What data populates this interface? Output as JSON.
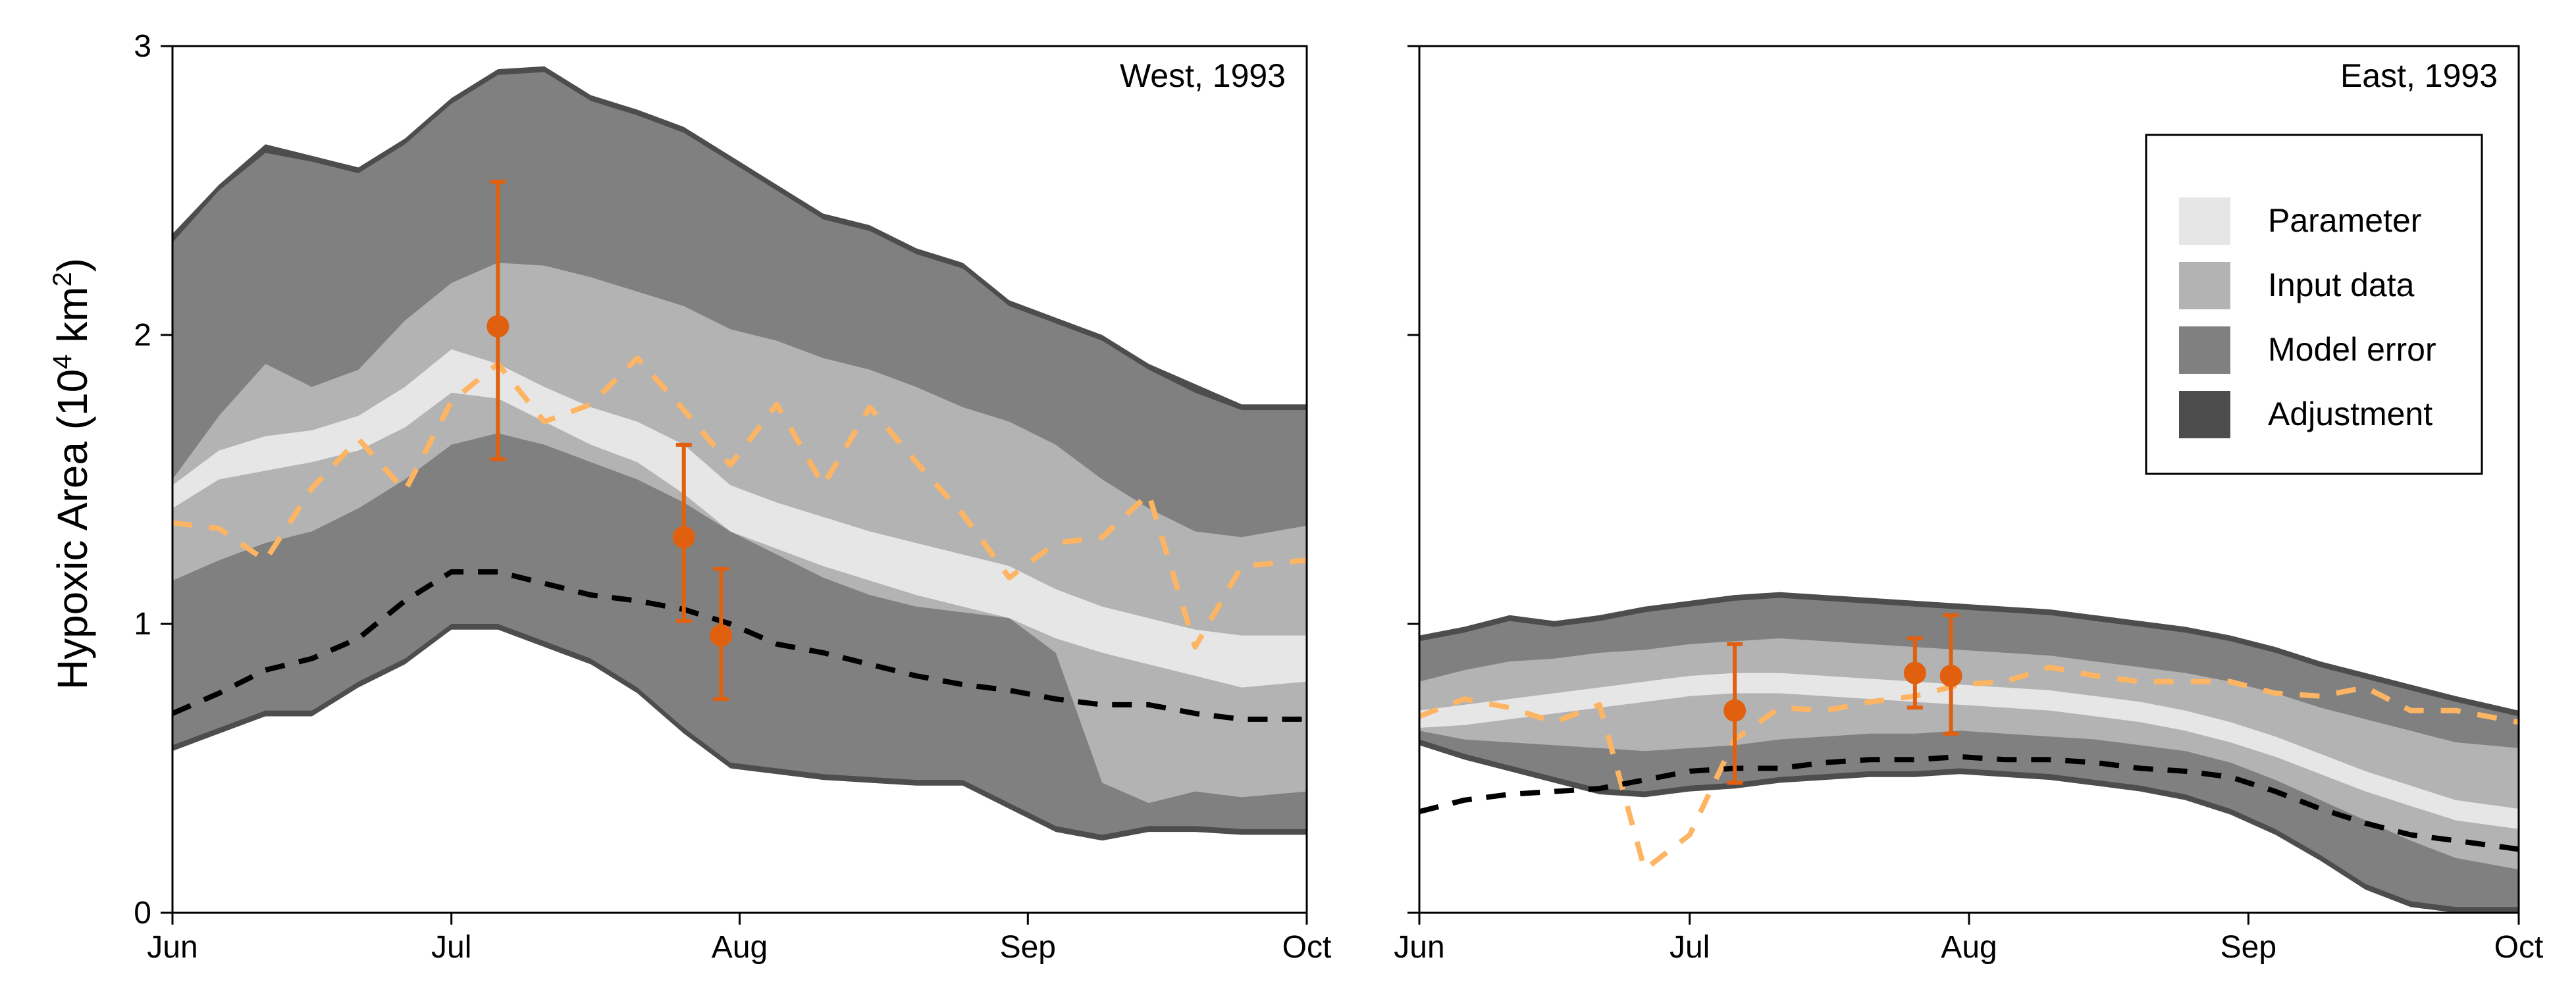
{
  "chart_data": {
    "type": "area",
    "ylabel_parts": {
      "main": "Hypoxic Area (10",
      "exp1": "4",
      "mid": " km",
      "exp2": "2",
      "end": ")"
    },
    "ylim": [
      0,
      3
    ],
    "yticks": [
      "0",
      "1",
      "2",
      "3"
    ],
    "xticks": [
      "Jun",
      "Jul",
      "Aug",
      "Sep",
      "Oct"
    ],
    "xlim_days": [
      0,
      122
    ],
    "tick_days": [
      0,
      30,
      61,
      92,
      122
    ],
    "legend": {
      "placement": "top-right of East panel",
      "items": [
        {
          "label": "Parameter",
          "color": "#e6e6e6"
        },
        {
          "label": "Input data",
          "color": "#b3b3b3"
        },
        {
          "label": "Model error",
          "color": "#808080"
        },
        {
          "label": "Adjustment",
          "color": "#4d4d4d"
        }
      ]
    },
    "colors": {
      "parameter": "#e6e6e6",
      "input": "#b3b3b3",
      "model": "#808080",
      "adjustment": "#4d4d4d",
      "obs": "#e0600f",
      "orange_dash": "#fdb563",
      "black_dash": "#000000"
    },
    "panels": [
      {
        "name": "West, 1993",
        "days": [
          0,
          5,
          10,
          15,
          20,
          25,
          30,
          35,
          40,
          45,
          50,
          55,
          60,
          65,
          70,
          75,
          80,
          85,
          90,
          95,
          100,
          105,
          110,
          115,
          122
        ],
        "adj_hi": [
          2.35,
          2.52,
          2.66,
          2.62,
          2.58,
          2.68,
          2.82,
          2.92,
          2.93,
          2.83,
          2.78,
          2.72,
          2.62,
          2.52,
          2.42,
          2.38,
          2.3,
          2.25,
          2.12,
          2.06,
          2.0,
          1.9,
          1.83,
          1.76,
          1.76
        ],
        "adj_lo": [
          0.56,
          0.62,
          0.68,
          0.68,
          0.78,
          0.86,
          0.98,
          0.98,
          0.92,
          0.86,
          0.76,
          0.62,
          0.5,
          0.48,
          0.46,
          0.45,
          0.44,
          0.44,
          0.36,
          0.28,
          0.25,
          0.28,
          0.28,
          0.27,
          0.27
        ],
        "model_hi": [
          2.32,
          2.5,
          2.63,
          2.6,
          2.56,
          2.66,
          2.8,
          2.9,
          2.91,
          2.81,
          2.76,
          2.7,
          2.6,
          2.5,
          2.4,
          2.36,
          2.28,
          2.23,
          2.1,
          2.04,
          1.98,
          1.88,
          1.8,
          1.74,
          1.74
        ],
        "model_lo": [
          0.58,
          0.64,
          0.7,
          0.7,
          0.8,
          0.88,
          1.0,
          1.0,
          0.94,
          0.88,
          0.78,
          0.64,
          0.52,
          0.5,
          0.48,
          0.47,
          0.46,
          0.46,
          0.38,
          0.3,
          0.27,
          0.3,
          0.3,
          0.29,
          0.29
        ],
        "input_hi": [
          1.5,
          1.72,
          1.9,
          1.82,
          1.88,
          2.05,
          2.18,
          2.25,
          2.24,
          2.2,
          2.15,
          2.1,
          2.02,
          1.98,
          1.92,
          1.88,
          1.82,
          1.75,
          1.7,
          1.62,
          1.5,
          1.4,
          1.32,
          1.3,
          1.34
        ],
        "input_lo": [
          1.15,
          1.22,
          1.28,
          1.32,
          1.4,
          1.5,
          1.62,
          1.66,
          1.62,
          1.56,
          1.5,
          1.42,
          1.32,
          1.24,
          1.16,
          1.1,
          1.06,
          1.04,
          1.02,
          0.9,
          0.45,
          0.38,
          0.42,
          0.4,
          0.42
        ],
        "param_hi": [
          1.48,
          1.6,
          1.65,
          1.67,
          1.72,
          1.82,
          1.95,
          1.9,
          1.82,
          1.75,
          1.7,
          1.62,
          1.48,
          1.42,
          1.37,
          1.32,
          1.28,
          1.24,
          1.2,
          1.12,
          1.06,
          1.02,
          0.98,
          0.96,
          0.96
        ],
        "param_lo": [
          1.4,
          1.5,
          1.53,
          1.56,
          1.6,
          1.68,
          1.8,
          1.78,
          1.7,
          1.62,
          1.56,
          1.45,
          1.32,
          1.26,
          1.2,
          1.15,
          1.1,
          1.06,
          1.02,
          0.95,
          0.9,
          0.86,
          0.82,
          0.78,
          0.8
        ],
        "black_dash": [
          0.69,
          0.76,
          0.84,
          0.88,
          0.95,
          1.08,
          1.18,
          1.18,
          1.14,
          1.1,
          1.08,
          1.05,
          1.0,
          0.93,
          0.9,
          0.86,
          0.82,
          0.79,
          0.77,
          0.74,
          0.72,
          0.72,
          0.69,
          0.67,
          0.67
        ],
        "orange_dash": [
          1.35,
          1.33,
          1.22,
          1.47,
          1.64,
          1.46,
          1.77,
          1.9,
          1.7,
          1.76,
          1.92,
          1.74,
          1.55,
          1.76,
          1.48,
          1.75,
          1.56,
          1.38,
          1.16,
          1.28,
          1.3,
          1.45,
          0.92,
          1.2,
          1.22
        ],
        "obs": [
          {
            "day": 35,
            "value": 2.03,
            "lo": 1.57,
            "hi": 2.53
          },
          {
            "day": 55,
            "value": 1.3,
            "lo": 1.01,
            "hi": 1.62
          },
          {
            "day": 59,
            "value": 0.96,
            "lo": 0.74,
            "hi": 1.19
          }
        ]
      },
      {
        "name": "East, 1993",
        "days": [
          0,
          5,
          10,
          15,
          20,
          25,
          30,
          35,
          40,
          45,
          50,
          55,
          60,
          65,
          70,
          75,
          80,
          85,
          90,
          95,
          100,
          105,
          110,
          115,
          122
        ],
        "adj_hi": [
          0.96,
          0.99,
          1.03,
          1.01,
          1.03,
          1.06,
          1.08,
          1.1,
          1.11,
          1.1,
          1.09,
          1.08,
          1.07,
          1.06,
          1.05,
          1.03,
          1.01,
          0.99,
          0.96,
          0.92,
          0.87,
          0.83,
          0.79,
          0.75,
          0.7
        ],
        "adj_lo": [
          0.58,
          0.53,
          0.49,
          0.45,
          0.41,
          0.4,
          0.42,
          0.43,
          0.45,
          0.46,
          0.47,
          0.47,
          0.48,
          0.47,
          0.46,
          0.44,
          0.42,
          0.39,
          0.34,
          0.27,
          0.18,
          0.08,
          0.02,
          0.0,
          0.0
        ],
        "model_hi": [
          0.94,
          0.97,
          1.01,
          0.99,
          1.01,
          1.04,
          1.06,
          1.08,
          1.09,
          1.08,
          1.07,
          1.06,
          1.05,
          1.04,
          1.03,
          1.01,
          0.99,
          0.97,
          0.94,
          0.9,
          0.85,
          0.81,
          0.77,
          0.73,
          0.68
        ],
        "model_lo": [
          0.6,
          0.55,
          0.51,
          0.47,
          0.43,
          0.42,
          0.44,
          0.45,
          0.47,
          0.48,
          0.49,
          0.49,
          0.5,
          0.49,
          0.48,
          0.46,
          0.44,
          0.41,
          0.36,
          0.29,
          0.2,
          0.1,
          0.04,
          0.02,
          0.02
        ],
        "input_hi": [
          0.8,
          0.84,
          0.87,
          0.88,
          0.9,
          0.91,
          0.93,
          0.94,
          0.95,
          0.94,
          0.93,
          0.92,
          0.91,
          0.9,
          0.89,
          0.87,
          0.85,
          0.83,
          0.8,
          0.76,
          0.71,
          0.67,
          0.63,
          0.59,
          0.57
        ],
        "input_lo": [
          0.63,
          0.6,
          0.59,
          0.58,
          0.57,
          0.56,
          0.57,
          0.58,
          0.6,
          0.61,
          0.62,
          0.62,
          0.63,
          0.62,
          0.61,
          0.6,
          0.58,
          0.56,
          0.52,
          0.46,
          0.39,
          0.32,
          0.25,
          0.19,
          0.15
        ],
        "param_hi": [
          0.7,
          0.72,
          0.74,
          0.76,
          0.78,
          0.8,
          0.82,
          0.83,
          0.83,
          0.82,
          0.81,
          0.8,
          0.79,
          0.78,
          0.77,
          0.75,
          0.73,
          0.7,
          0.66,
          0.61,
          0.55,
          0.49,
          0.44,
          0.39,
          0.36
        ],
        "param_lo": [
          0.64,
          0.65,
          0.67,
          0.69,
          0.71,
          0.73,
          0.75,
          0.76,
          0.76,
          0.75,
          0.74,
          0.73,
          0.72,
          0.71,
          0.7,
          0.68,
          0.66,
          0.63,
          0.59,
          0.54,
          0.48,
          0.42,
          0.37,
          0.32,
          0.29
        ],
        "black_dash": [
          0.35,
          0.39,
          0.41,
          0.42,
          0.43,
          0.46,
          0.49,
          0.5,
          0.5,
          0.52,
          0.53,
          0.53,
          0.54,
          0.53,
          0.53,
          0.52,
          0.5,
          0.49,
          0.47,
          0.42,
          0.36,
          0.31,
          0.27,
          0.25,
          0.22
        ],
        "orange_dash": [
          0.68,
          0.74,
          0.71,
          0.66,
          0.72,
          0.15,
          0.27,
          0.6,
          0.71,
          0.7,
          0.73,
          0.75,
          0.79,
          0.8,
          0.85,
          0.82,
          0.8,
          0.8,
          0.8,
          0.76,
          0.75,
          0.78,
          0.7,
          0.7,
          0.66
        ],
        "obs": [
          {
            "day": 35,
            "value": 0.7,
            "lo": 0.45,
            "hi": 0.93
          },
          {
            "day": 55,
            "value": 0.83,
            "lo": 0.71,
            "hi": 0.95
          },
          {
            "day": 59,
            "value": 0.82,
            "lo": 0.62,
            "hi": 1.03
          }
        ]
      }
    ]
  }
}
